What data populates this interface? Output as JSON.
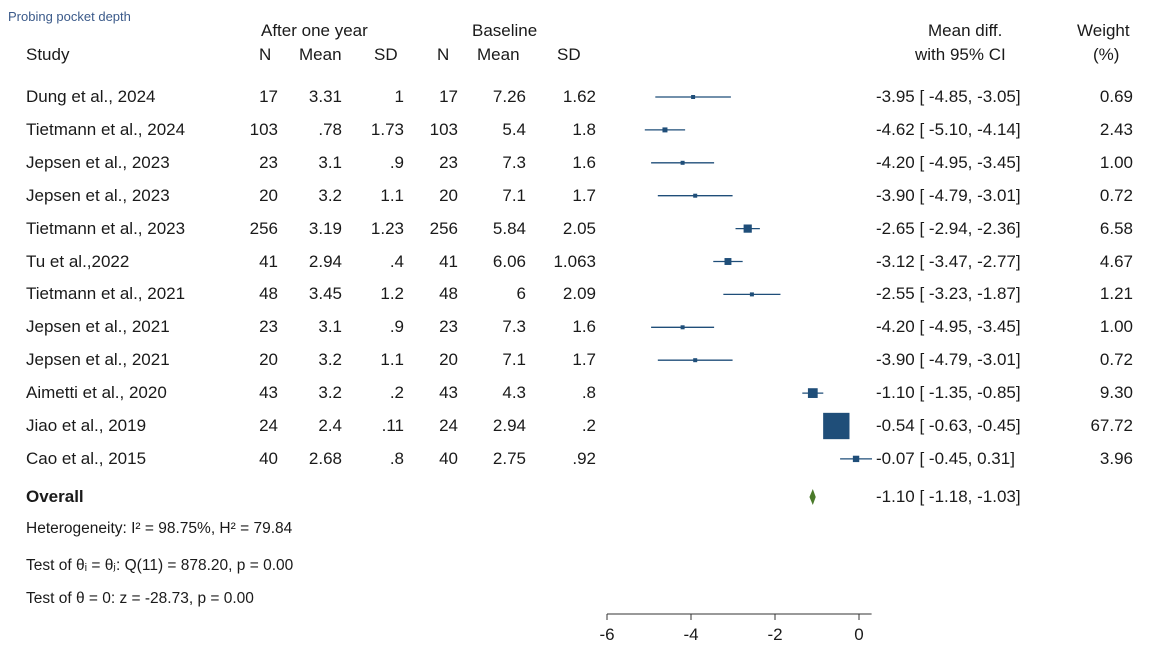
{
  "figure_title": "Probing pocket depth",
  "headers": {
    "study": "Study",
    "group1": "After one year",
    "group2": "Baseline",
    "n": "N",
    "mean": "Mean",
    "sd": "SD",
    "md_line1": "Mean diff.",
    "md_line2": "with 95% CI",
    "weight_line1": "Weight",
    "weight_line2": "(%)"
  },
  "rows": [
    {
      "study": "Dung et al., 2024",
      "n1": "17",
      "mean1": "3.31",
      "sd1": "1",
      "n2": "17",
      "mean2": "7.26",
      "sd2": "1.62",
      "ci_text": "-3.95 [ -4.85, -3.05]",
      "weight": "0.69"
    },
    {
      "study": "Tietmann et al., 2024",
      "n1": "103",
      "mean1": ".78",
      "sd1": "1.73",
      "n2": "103",
      "mean2": "5.4",
      "sd2": "1.8",
      "ci_text": "-4.62 [ -5.10, -4.14]",
      "weight": "2.43"
    },
    {
      "study": "Jepsen et al., 2023",
      "n1": "23",
      "mean1": "3.1",
      "sd1": ".9",
      "n2": "23",
      "mean2": "7.3",
      "sd2": "1.6",
      "ci_text": "-4.20 [ -4.95, -3.45]",
      "weight": "1.00"
    },
    {
      "study": "Jepsen et al., 2023",
      "n1": "20",
      "mean1": "3.2",
      "sd1": "1.1",
      "n2": "20",
      "mean2": "7.1",
      "sd2": "1.7",
      "ci_text": "-3.90 [ -4.79, -3.01]",
      "weight": "0.72"
    },
    {
      "study": "Tietmann et al., 2023",
      "n1": "256",
      "mean1": "3.19",
      "sd1": "1.23",
      "n2": "256",
      "mean2": "5.84",
      "sd2": "2.05",
      "ci_text": "-2.65 [ -2.94, -2.36]",
      "weight": "6.58"
    },
    {
      "study": "Tu et al.,2022",
      "n1": "41",
      "mean1": "2.94",
      "sd1": ".4",
      "n2": "41",
      "mean2": "6.06",
      "sd2": "1.063",
      "ci_text": "-3.12 [ -3.47, -2.77]",
      "weight": "4.67"
    },
    {
      "study": "Tietmann et al., 2021",
      "n1": "48",
      "mean1": "3.45",
      "sd1": "1.2",
      "n2": "48",
      "mean2": "6",
      "sd2": "2.09",
      "ci_text": "-2.55 [ -3.23, -1.87]",
      "weight": "1.21"
    },
    {
      "study": "Jepsen et al., 2021",
      "n1": "23",
      "mean1": "3.1",
      "sd1": ".9",
      "n2": "23",
      "mean2": "7.3",
      "sd2": "1.6",
      "ci_text": "-4.20 [ -4.95, -3.45]",
      "weight": "1.00"
    },
    {
      "study": "Jepsen et al., 2021",
      "n1": "20",
      "mean1": "3.2",
      "sd1": "1.1",
      "n2": "20",
      "mean2": "7.1",
      "sd2": "1.7",
      "ci_text": "-3.90 [ -4.79, -3.01]",
      "weight": "0.72"
    },
    {
      "study": "Aimetti et al., 2020",
      "n1": "43",
      "mean1": "3.2",
      "sd1": ".2",
      "n2": "43",
      "mean2": "4.3",
      "sd2": ".8",
      "ci_text": "-1.10 [ -1.35, -0.85]",
      "weight": "9.30"
    },
    {
      "study": "Jiao et al., 2019",
      "n1": "24",
      "mean1": "2.4",
      "sd1": ".11",
      "n2": "24",
      "mean2": "2.94",
      "sd2": ".2",
      "ci_text": "-0.54 [ -0.63, -0.45]",
      "weight": "67.72"
    },
    {
      "study": "Cao et al., 2015",
      "n1": "40",
      "mean1": "2.68",
      "sd1": ".8",
      "n2": "40",
      "mean2": "2.75",
      "sd2": ".92",
      "ci_text": "-0.07 [ -0.45,  0.31]",
      "weight": "3.96"
    }
  ],
  "overall": {
    "label": "Overall",
    "ci_text": "-1.10 [ -1.18, -1.03]"
  },
  "footer": {
    "heterogeneity": "Heterogeneity: I² = 98.75%, H² = 79.84",
    "test_equal": "Test of θᵢ = θⱼ: Q(11) = 878.20, p = 0.00",
    "test_zero": "Test of θ = 0: z = -28.73, p = 0.00"
  },
  "colors": {
    "marker": "#1f4e79",
    "overall_diamond": "#4a7a2a",
    "axis": "#333333"
  },
  "chart_data": {
    "type": "forest",
    "title": "Probing pocket depth",
    "xlim": [
      -6,
      0.3
    ],
    "xticks": [
      -6,
      -4,
      -2,
      0
    ],
    "xtick_labels": [
      "-6",
      "-4",
      "-2",
      "0"
    ],
    "studies": [
      {
        "name": "Dung et al., 2024",
        "es": -3.95,
        "lo": -4.85,
        "hi": -3.05,
        "weight": 0.69
      },
      {
        "name": "Tietmann et al., 2024",
        "es": -4.62,
        "lo": -5.1,
        "hi": -4.14,
        "weight": 2.43
      },
      {
        "name": "Jepsen et al., 2023",
        "es": -4.2,
        "lo": -4.95,
        "hi": -3.45,
        "weight": 1.0
      },
      {
        "name": "Jepsen et al., 2023",
        "es": -3.9,
        "lo": -4.79,
        "hi": -3.01,
        "weight": 0.72
      },
      {
        "name": "Tietmann et al., 2023",
        "es": -2.65,
        "lo": -2.94,
        "hi": -2.36,
        "weight": 6.58
      },
      {
        "name": "Tu et al.,2022",
        "es": -3.12,
        "lo": -3.47,
        "hi": -2.77,
        "weight": 4.67
      },
      {
        "name": "Tietmann et al., 2021",
        "es": -2.55,
        "lo": -3.23,
        "hi": -1.87,
        "weight": 1.21
      },
      {
        "name": "Jepsen et al., 2021",
        "es": -4.2,
        "lo": -4.95,
        "hi": -3.45,
        "weight": 1.0
      },
      {
        "name": "Jepsen et al., 2021",
        "es": -3.9,
        "lo": -4.79,
        "hi": -3.01,
        "weight": 0.72
      },
      {
        "name": "Aimetti et al., 2020",
        "es": -1.1,
        "lo": -1.35,
        "hi": -0.85,
        "weight": 9.3
      },
      {
        "name": "Jiao et al., 2019",
        "es": -0.54,
        "lo": -0.63,
        "hi": -0.45,
        "weight": 67.72
      },
      {
        "name": "Cao et al., 2015",
        "es": -0.07,
        "lo": -0.45,
        "hi": 0.31,
        "weight": 3.96
      }
    ],
    "overall": {
      "es": -1.1,
      "lo": -1.18,
      "hi": -1.03
    }
  }
}
